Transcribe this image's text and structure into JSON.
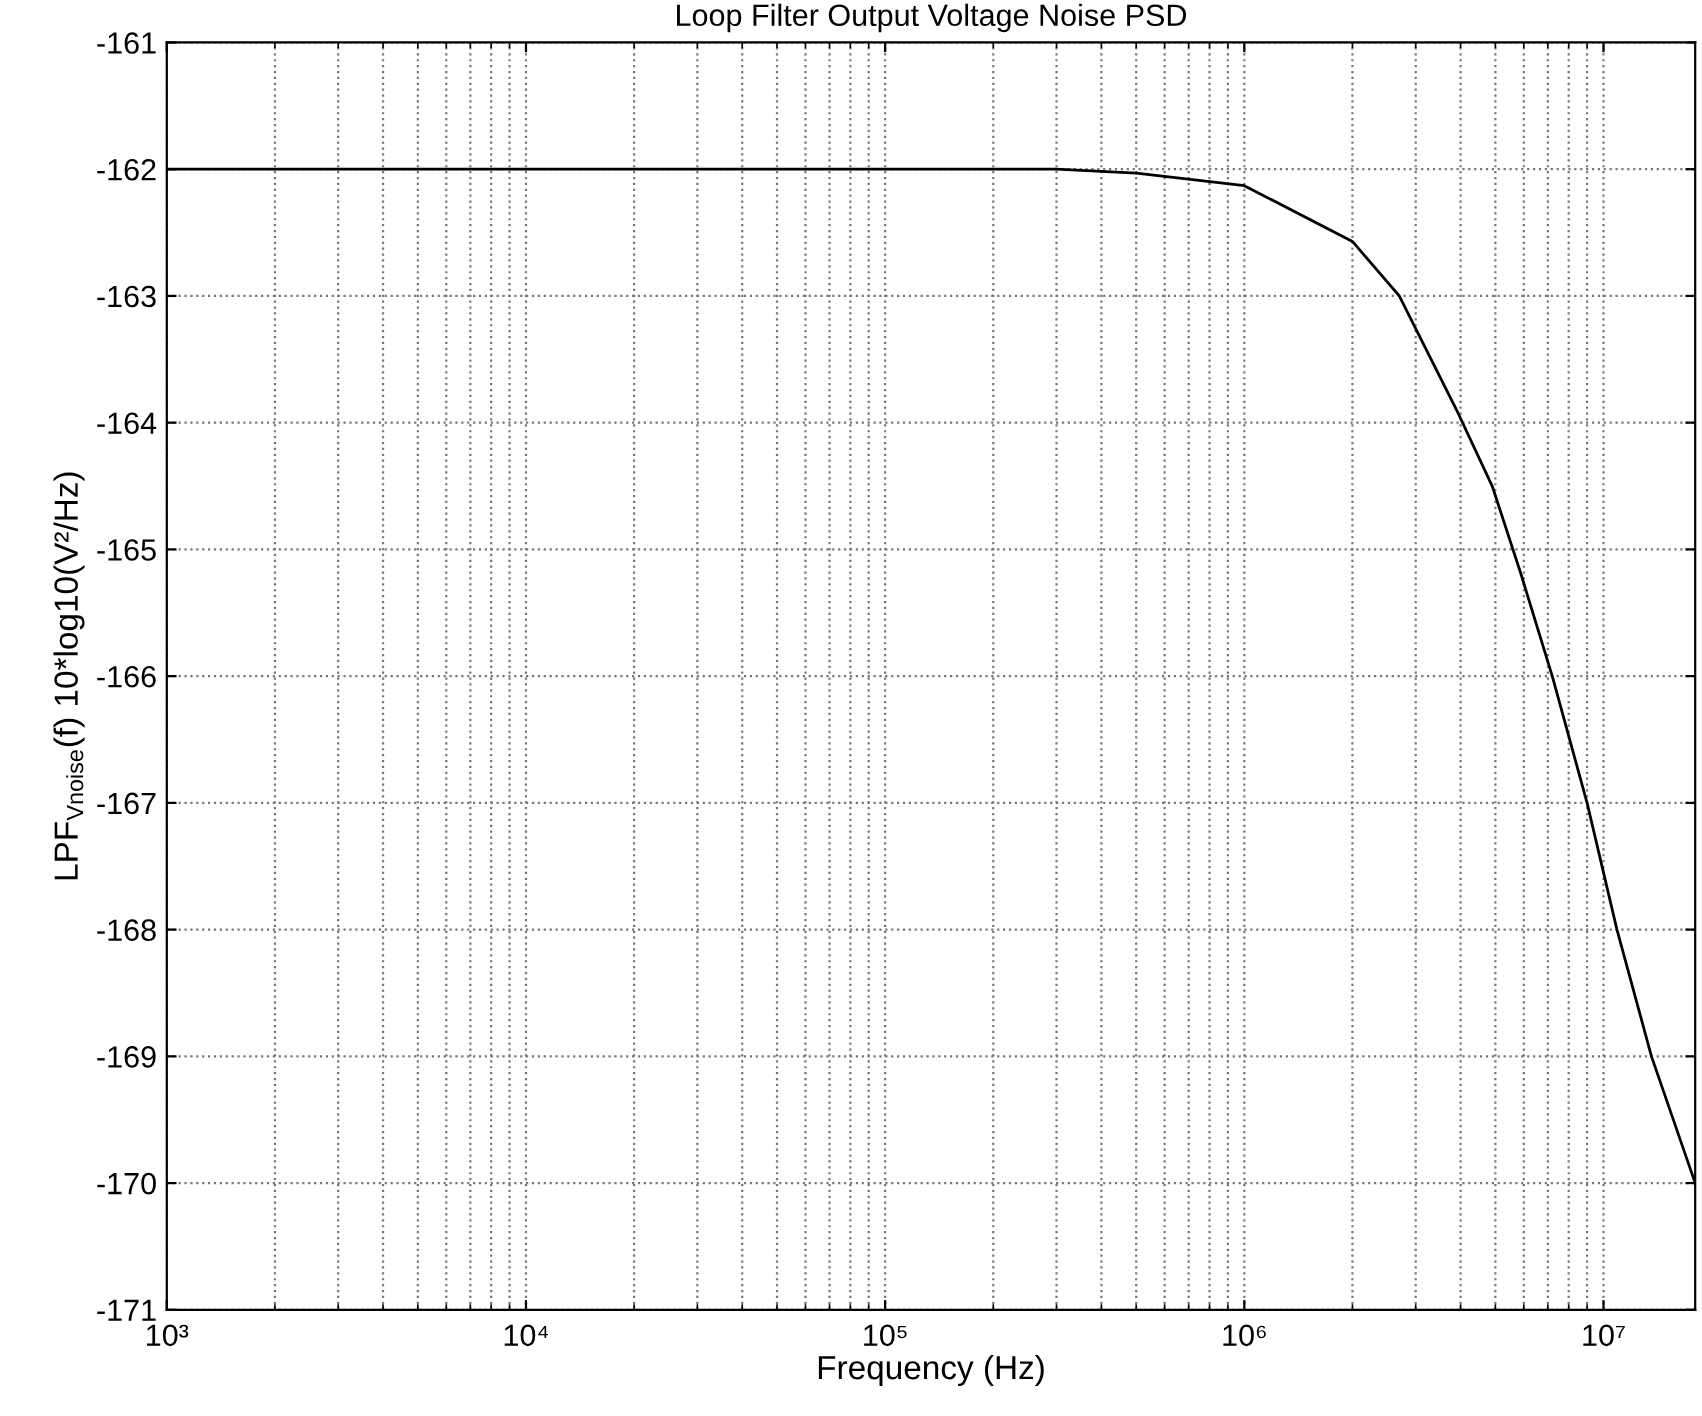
{
  "chart_data": {
    "type": "line",
    "title": "Loop Filter Output Voltage Noise PSD",
    "xlabel": "Frequency (Hz)",
    "ylabel": "LPF$_{Vnoise}$(f) 10*log10(V²/Hz)",
    "log": "x",
    "grid": true,
    "line_style": "solid",
    "marker": "none",
    "x": [
      1000,
      10000,
      100000,
      300000,
      500000,
      1000000,
      2000000,
      2700000,
      3900000,
      4900000,
      5900000,
      7200000,
      9000000,
      10900000,
      13600000,
      18000000
    ],
    "series": [
      {
        "color": "#000000",
        "values": [
          -162,
          -162,
          -162,
          -162,
          -162.03,
          -162.13,
          -162.57,
          -163,
          -163.9,
          -164.5,
          -165.2,
          -166,
          -167,
          -168,
          -169,
          -170
        ]
      }
    ],
    "xlim": [
      1000,
      18000000
    ],
    "xticks": [
      {
        "value": 1000,
        "label": "10³"
      },
      {
        "value": 10000,
        "label": "10⁴"
      },
      {
        "value": 100000,
        "label": "10⁵"
      },
      {
        "value": 1000000,
        "label": "10⁶"
      },
      {
        "value": 10000000,
        "label": "10⁷"
      }
    ],
    "ylim": [
      -171,
      -161
    ],
    "yticks": [
      {
        "value": -171,
        "label": "-171"
      },
      {
        "value": -170,
        "label": "-170"
      },
      {
        "value": -169,
        "label": "-169"
      },
      {
        "value": -168,
        "label": "-168"
      },
      {
        "value": -167,
        "label": "-167"
      },
      {
        "value": -166,
        "label": "-166"
      },
      {
        "value": -165,
        "label": "-165"
      },
      {
        "value": -164,
        "label": "-164"
      },
      {
        "value": -163,
        "label": "-163"
      },
      {
        "value": -162,
        "label": "-162"
      },
      {
        "value": -161,
        "label": "-161"
      }
    ]
  }
}
